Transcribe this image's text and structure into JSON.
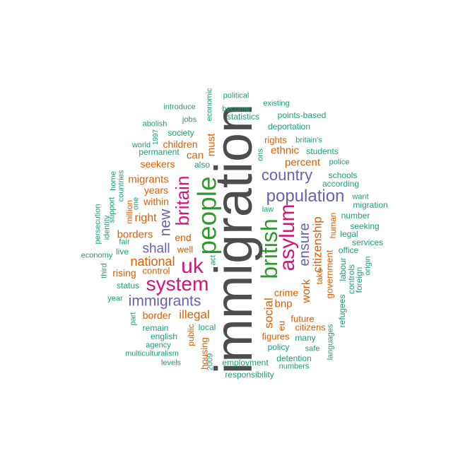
{
  "colors": {
    "gray": "#4d4d4d",
    "green": "#2e9a2e",
    "purple": "#6a5fb0",
    "magenta": "#d4147a",
    "orange": "#d95f02",
    "teal": "#1b9e77"
  },
  "words": [
    {
      "text": "immigration",
      "color": "gray"
    },
    {
      "text": "people",
      "color": "green"
    },
    {
      "text": "british",
      "color": "green"
    },
    {
      "text": "asylum",
      "color": "magenta"
    },
    {
      "text": "britain",
      "color": "magenta"
    },
    {
      "text": "uk",
      "color": "magenta"
    },
    {
      "text": "system",
      "color": "magenta"
    },
    {
      "text": "population",
      "color": "purple"
    },
    {
      "text": "country",
      "color": "purple"
    },
    {
      "text": "immigrants",
      "color": "purple"
    },
    {
      "text": "new",
      "color": "purple"
    },
    {
      "text": "shall",
      "color": "purple"
    },
    {
      "text": "ensure",
      "color": "purple"
    },
    {
      "text": "citizenship",
      "color": "orange"
    },
    {
      "text": "national",
      "color": "orange"
    },
    {
      "text": "illegal",
      "color": "orange"
    },
    {
      "text": "social",
      "color": "orange"
    },
    {
      "text": "work",
      "color": "orange"
    },
    {
      "text": "percent",
      "color": "orange"
    },
    {
      "text": "ethnic",
      "color": "orange"
    },
    {
      "text": "must",
      "color": "orange"
    },
    {
      "text": "can",
      "color": "orange"
    },
    {
      "text": "children",
      "color": "orange"
    },
    {
      "text": "seekers",
      "color": "orange"
    },
    {
      "text": "migrants",
      "color": "orange"
    },
    {
      "text": "years",
      "color": "orange"
    },
    {
      "text": "within",
      "color": "orange"
    },
    {
      "text": "right",
      "color": "orange"
    },
    {
      "text": "borders",
      "color": "orange"
    },
    {
      "text": "end",
      "color": "orange"
    },
    {
      "text": "well",
      "color": "orange"
    },
    {
      "text": "rising",
      "color": "orange"
    },
    {
      "text": "control",
      "color": "orange"
    },
    {
      "text": "border",
      "color": "orange"
    },
    {
      "text": "bnp",
      "color": "orange"
    },
    {
      "text": "crime",
      "color": "orange"
    },
    {
      "text": "future",
      "color": "orange"
    },
    {
      "text": "citizens",
      "color": "orange"
    },
    {
      "text": "figures",
      "color": "orange"
    },
    {
      "text": "eu",
      "color": "orange"
    },
    {
      "text": "government",
      "color": "orange"
    },
    {
      "text": "take",
      "color": "orange"
    },
    {
      "text": "rights",
      "color": "orange"
    },
    {
      "text": "housing",
      "color": "orange"
    },
    {
      "text": "public",
      "color": "orange"
    },
    {
      "text": "million",
      "color": "orange"
    },
    {
      "text": "human",
      "color": "orange"
    },
    {
      "text": "political",
      "color": "teal"
    },
    {
      "text": "existing",
      "color": "teal"
    },
    {
      "text": "introduce",
      "color": "teal"
    },
    {
      "text": "economic",
      "color": "teal"
    },
    {
      "text": "become",
      "color": "teal"
    },
    {
      "text": "statistics",
      "color": "teal"
    },
    {
      "text": "points-based",
      "color": "teal"
    },
    {
      "text": "abolish",
      "color": "teal"
    },
    {
      "text": "jobs",
      "color": "teal"
    },
    {
      "text": "deportation",
      "color": "teal"
    },
    {
      "text": "1997",
      "color": "teal"
    },
    {
      "text": "society",
      "color": "teal"
    },
    {
      "text": "world",
      "color": "teal"
    },
    {
      "text": "britain's",
      "color": "teal"
    },
    {
      "text": "permanent",
      "color": "teal"
    },
    {
      "text": "ons",
      "color": "teal"
    },
    {
      "text": "students",
      "color": "teal"
    },
    {
      "text": "police",
      "color": "teal"
    },
    {
      "text": "also",
      "color": "teal"
    },
    {
      "text": "schools",
      "color": "teal"
    },
    {
      "text": "according",
      "color": "teal"
    },
    {
      "text": "home",
      "color": "teal"
    },
    {
      "text": "countries",
      "color": "teal"
    },
    {
      "text": "want",
      "color": "teal"
    },
    {
      "text": "migration",
      "color": "teal"
    },
    {
      "text": "support",
      "color": "teal"
    },
    {
      "text": "one",
      "color": "teal"
    },
    {
      "text": "law",
      "color": "teal"
    },
    {
      "text": "number",
      "color": "teal"
    },
    {
      "text": "persecution",
      "color": "teal"
    },
    {
      "text": "identity",
      "color": "teal"
    },
    {
      "text": "seeking",
      "color": "teal"
    },
    {
      "text": "legal",
      "color": "teal"
    },
    {
      "text": "fair",
      "color": "teal"
    },
    {
      "text": "services",
      "color": "teal"
    },
    {
      "text": "economy",
      "color": "teal"
    },
    {
      "text": "live",
      "color": "teal"
    },
    {
      "text": "office",
      "color": "teal"
    },
    {
      "text": "third",
      "color": "teal"
    },
    {
      "text": "act",
      "color": "teal"
    },
    {
      "text": "labour",
      "color": "teal"
    },
    {
      "text": "origin",
      "color": "teal"
    },
    {
      "text": "controls",
      "color": "teal"
    },
    {
      "text": "foreign",
      "color": "teal"
    },
    {
      "text": "status",
      "color": "teal"
    },
    {
      "text": "year",
      "color": "teal"
    },
    {
      "text": "refugees",
      "color": "teal"
    },
    {
      "text": "part",
      "color": "teal"
    },
    {
      "text": "remain",
      "color": "teal"
    },
    {
      "text": "local",
      "color": "teal"
    },
    {
      "text": "many",
      "color": "teal"
    },
    {
      "text": "english",
      "color": "teal"
    },
    {
      "text": "agency",
      "color": "teal"
    },
    {
      "text": "2009",
      "color": "teal"
    },
    {
      "text": "policy",
      "color": "teal"
    },
    {
      "text": "safe",
      "color": "teal"
    },
    {
      "text": "languages",
      "color": "teal"
    },
    {
      "text": "multiculturalism",
      "color": "teal"
    },
    {
      "text": "detention",
      "color": "teal"
    },
    {
      "text": "levels",
      "color": "teal"
    },
    {
      "text": "employment",
      "color": "teal"
    },
    {
      "text": "numbers",
      "color": "teal"
    },
    {
      "text": "responsibility",
      "color": "teal"
    }
  ]
}
